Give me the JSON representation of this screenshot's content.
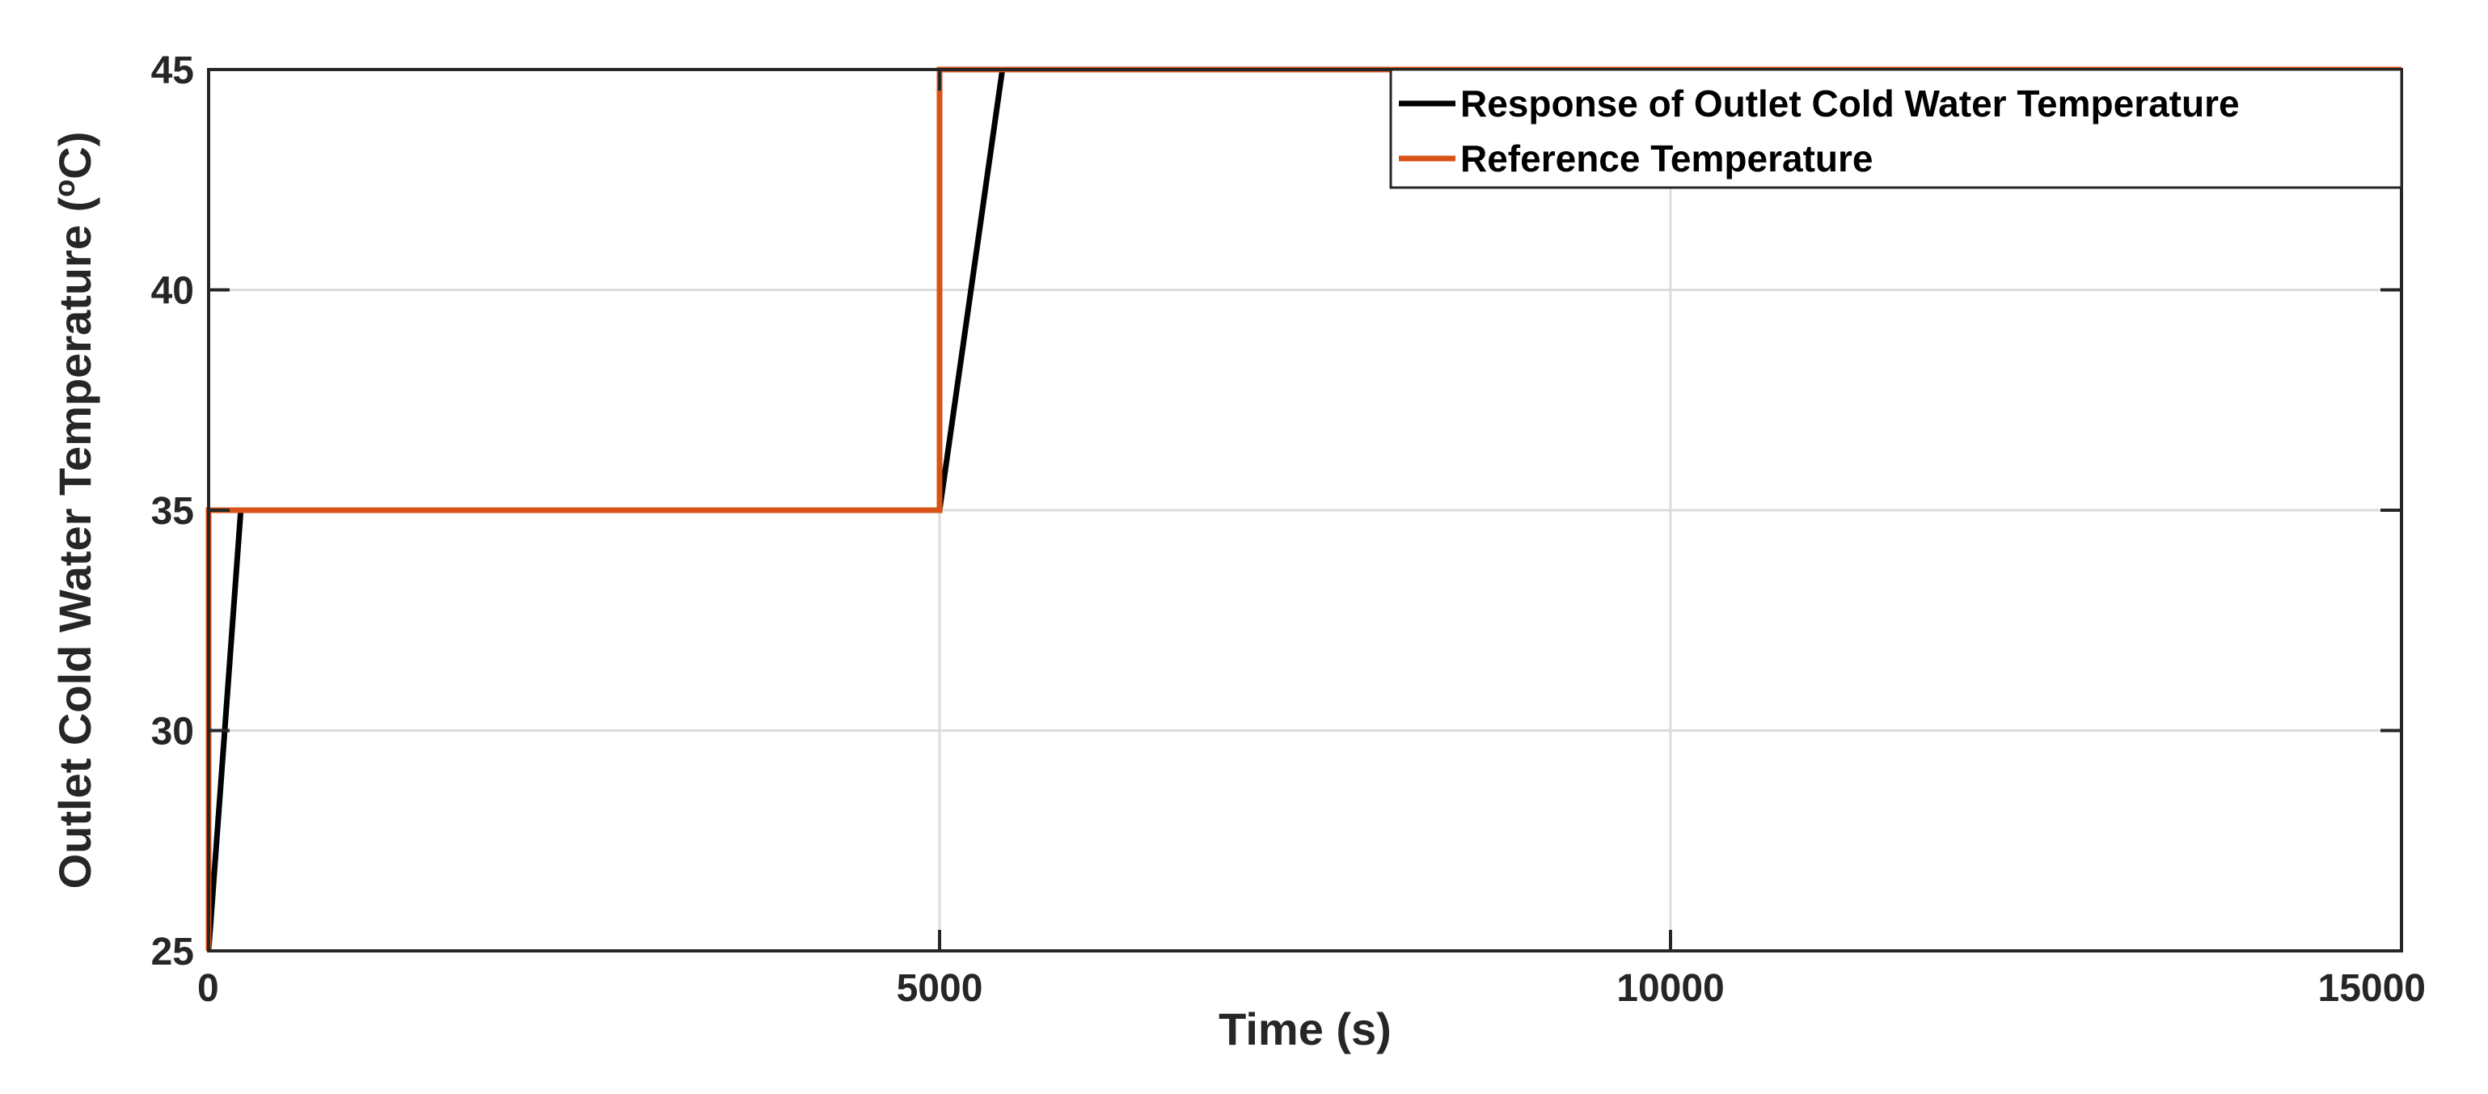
{
  "chart_data": {
    "type": "line",
    "xlabel": "Time (s)",
    "ylabel_prefix": "Outlet Cold Water Temperature (",
    "ylabel_degree": "o",
    "ylabel_suffix": "C)",
    "xlim": [
      0,
      15000
    ],
    "ylim": [
      25,
      45
    ],
    "xticks": [
      0,
      5000,
      10000,
      15000
    ],
    "yticks": [
      25,
      30,
      35,
      40,
      45
    ],
    "xtick_labels": [
      "0",
      "5000",
      "10000",
      "15000"
    ],
    "ytick_labels": [
      "25",
      "30",
      "35",
      "40",
      "45"
    ],
    "grid": true,
    "legend_position": "top-right",
    "series": [
      {
        "name": "Response of Outlet Cold Water Temperature",
        "color": "#000000",
        "x": [
          0,
          220,
          5000,
          5430,
          15000
        ],
        "y": [
          25,
          35,
          35,
          45,
          45
        ]
      },
      {
        "name": "Reference Temperature",
        "color": "#D95319",
        "x": [
          0,
          0,
          5000,
          5000,
          15000
        ],
        "y": [
          25,
          35,
          35,
          45,
          45
        ]
      }
    ]
  }
}
